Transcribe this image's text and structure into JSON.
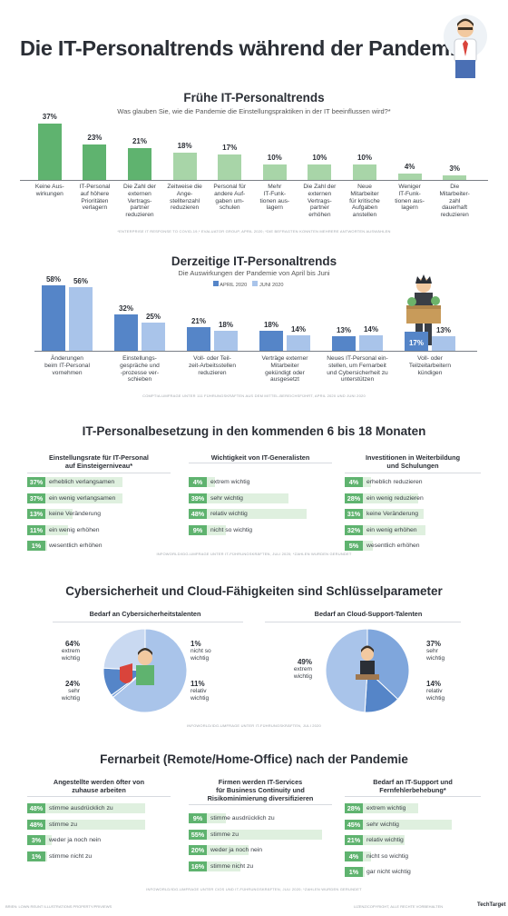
{
  "title": "Die IT-Personaltrends während der Pandemie",
  "footer": {
    "left": "BRIEN: LOWN REUNT ILLUSTRATIONS PROPERTY/PRIVIEWS",
    "right": "LIZENZ/COPYRIGHT, ALLE RECHTE VORBEHALTEN",
    "brand": "TechTarget"
  },
  "colors": {
    "green": "#5fb36f",
    "light_green": "#a8d5a8",
    "pale_green": "#dff0df",
    "blue": "#5585c8",
    "light_blue": "#a9c4ea",
    "pale_blue": "#e3ecf8",
    "dark": "#2b2f36"
  },
  "section1": {
    "title": "Frühe IT-Personaltrends",
    "subtitle": "Was glauben Sie, wie die Pandemie die Einstellungspraktiken in der IT beeinflussen wird?*",
    "source": "*ENTERPRISE IT RESPONSE TO COVID-19,* EVALUATOR GROUP, APRIL 2020; *DIE BEFRAGTEN KONNTEN MEHRERE ANTWORTEN AUSWÄHLEN",
    "chart_data": {
      "type": "bar",
      "categories": [
        "Keine Aus-\nwirkungen",
        "IT-Personal\nauf höhere\nPrioritäten\nverlagern",
        "Die Zahl der\nexternen\nVertrags-\npartner\nreduzieren",
        "Zeitweise die\nAnge-\nstelltenzahl\nreduzieren",
        "Personal für\nandere Auf-\ngaben um-\nschulen",
        "Mehr\nIT-Funk-\ntionen aus-\nlagern",
        "Die Zahl der\nexternen\nVertrags-\npartner\nerhöhen",
        "Neue\nMitarbeiter\nfür kritische\nAufgaben\nanstellen",
        "Weniger\nIT-Funk-\ntionen aus-\nlagern",
        "Die\nMitarbeiter-\nzahl\ndauerhaft\nreduzieren"
      ],
      "values": [
        37,
        23,
        21,
        18,
        17,
        10,
        10,
        10,
        4,
        3
      ],
      "value_labels": [
        "37%",
        "23%",
        "21%",
        "18%",
        "17%",
        "10%",
        "10%",
        "10%",
        "4%",
        "3%"
      ],
      "ylim": [
        0,
        37
      ]
    }
  },
  "section2": {
    "title": "Derzeitige IT-Personaltrends",
    "subtitle": "Die Auswirkungen der Pandemie von April bis Juni",
    "source": "COMPTIA-UMFRAGE UNTER 111 FÜHRUNGSKRÄFTEN AUS DEM MITTEL-BEREICHSFÜHRT, APRIL 2020 UND JUNI 2020",
    "chart_data": {
      "type": "bar",
      "categories": [
        "Änderungen\nbeim IT-Personal\nvornehmen",
        "Einstellungs-\ngespräche und\n-prozesse ver-\nschieben",
        "Voll- oder Teil-\nzeit-Arbeitsstellen\nreduzieren",
        "Verträge externer\nMitarbeiter\ngekündigt oder\nausgesetzt",
        "Neues IT-Personal ein-\nstellen, um Fernarbeit\nund Cybersicherheit zu\nunterstützen",
        "Voll- oder\nTeilzeitarbeitern\nkündigen"
      ],
      "series": [
        {
          "name": "APRIL 2020",
          "values": [
            58,
            32,
            21,
            18,
            13,
            17
          ],
          "labels": [
            "58%",
            "32%",
            "21%",
            "18%",
            "13%",
            "17%"
          ]
        },
        {
          "name": "JUNI 2020",
          "values": [
            56,
            25,
            18,
            14,
            14,
            13
          ],
          "labels": [
            "56%",
            "25%",
            "18%",
            "14%",
            "14%",
            "13%"
          ]
        }
      ],
      "ylim": [
        0,
        58
      ]
    }
  },
  "section3": {
    "title": "IT-Personalbesetzung in den kommenden 6 bis 18 Monaten",
    "source": "INFOWORLD/IDG-UMFRAGE UNTER IT-FÜHRUNGSKRÄFTEN, JULI 2020; *ZAHLEN WURDEN GERUNDET",
    "panels": [
      {
        "title": "Einstellungsrate für IT-Personal\nauf Einsteigerniveau*",
        "rows": [
          {
            "value": 37,
            "pct": "37%",
            "label": "erheblich verlangsamen"
          },
          {
            "value": 37,
            "pct": "37%",
            "label": "ein wenig verlangsamen"
          },
          {
            "value": 13,
            "pct": "13%",
            "label": "keine Veränderung"
          },
          {
            "value": 11,
            "pct": "11%",
            "label": "ein wenig erhöhen"
          },
          {
            "value": 1,
            "pct": "1%",
            "label": "wesentlich erhöhen"
          }
        ]
      },
      {
        "title": "Wichtigkeit von IT-Generalisten",
        "rows": [
          {
            "value": 4,
            "pct": "4%",
            "label": "extrem wichtig"
          },
          {
            "value": 39,
            "pct": "39%",
            "label": "sehr wichtig"
          },
          {
            "value": 48,
            "pct": "48%",
            "label": "relativ wichtig"
          },
          {
            "value": 9,
            "pct": "9%",
            "label": "nicht so wichtig"
          }
        ]
      },
      {
        "title": "Investitionen in Weiterbildung\nund Schulungen",
        "rows": [
          {
            "value": 4,
            "pct": "4%",
            "label": "erheblich reduzieren"
          },
          {
            "value": 28,
            "pct": "28%",
            "label": "ein wenig reduzieren"
          },
          {
            "value": 31,
            "pct": "31%",
            "label": "keine Veränderung"
          },
          {
            "value": 32,
            "pct": "32%",
            "label": "ein wenig erhöhen"
          },
          {
            "value": 5,
            "pct": "5%",
            "label": "wesentlich erhöhen"
          }
        ]
      }
    ]
  },
  "section4": {
    "title": "Cybersicherheit und Cloud-Fähigkeiten sind Schlüsselparameter",
    "source": "INFOWORLD/IDG-UMFRAGE UNTER IT-FÜHRUNGSKRÄFTEN, JULI 2020",
    "pies": [
      {
        "title": "Bedarf an Cybersicherheitstalenten",
        "slices": [
          {
            "value": 64,
            "pct": "64%",
            "label": "extrem\nwichtig"
          },
          {
            "value": 1,
            "pct": "1%",
            "label": "nicht so\nwichtig"
          },
          {
            "value": 11,
            "pct": "11%",
            "label": "relativ\nwichtig"
          },
          {
            "value": 24,
            "pct": "24%",
            "label": "sehr\nwichtig"
          }
        ]
      },
      {
        "title": "Bedarf an Cloud-Support-Talenten",
        "slices": [
          {
            "value": 37,
            "pct": "37%",
            "label": "sehr\nwichtig"
          },
          {
            "value": 14,
            "pct": "14%",
            "label": "relativ\nwichtig"
          },
          {
            "value": 49,
            "pct": "49%",
            "label": "extrem\nwichtig"
          }
        ]
      }
    ]
  },
  "section5": {
    "title": "Fernarbeit (Remote/Home-Office) nach der Pandemie",
    "source": "INFOWORLD/IDG-UMFRAGE UNTER CIOS UND IT-FÜHRUNGSKRÄFTEN, JULI 2020; *ZAHLEN WURDEN GERUNDET",
    "panels": [
      {
        "title": "Angestellte werden öfter von\nzuhause arbeiten",
        "rows": [
          {
            "value": 48,
            "pct": "48%",
            "label": "stimme ausdrücklich zu"
          },
          {
            "value": 48,
            "pct": "48%",
            "label": "stimme zu"
          },
          {
            "value": 3,
            "pct": "3%",
            "label": "weder ja noch nein"
          },
          {
            "value": 1,
            "pct": "1%",
            "label": "stimme nicht zu"
          }
        ]
      },
      {
        "title": "Firmen werden IT-Services\nfür Business Continuity und\nRisikominimierung diversifizieren",
        "rows": [
          {
            "value": 9,
            "pct": "9%",
            "label": "stimme ausdrücklich zu"
          },
          {
            "value": 55,
            "pct": "55%",
            "label": "stimme zu"
          },
          {
            "value": 20,
            "pct": "20%",
            "label": "weder ja noch nein"
          },
          {
            "value": 16,
            "pct": "16%",
            "label": "stimme nicht zu"
          }
        ]
      },
      {
        "title": "Bedarf an IT-Support und\nFernfehlerbehebung*",
        "rows": [
          {
            "value": 28,
            "pct": "28%",
            "label": "extrem wichtig"
          },
          {
            "value": 45,
            "pct": "45%",
            "label": "sehr wichtig"
          },
          {
            "value": 21,
            "pct": "21%",
            "label": "relativ wichtig"
          },
          {
            "value": 4,
            "pct": "4%",
            "label": "nicht so wichtig"
          },
          {
            "value": 1,
            "pct": "1%",
            "label": "gar nicht wichtig"
          }
        ]
      }
    ]
  }
}
